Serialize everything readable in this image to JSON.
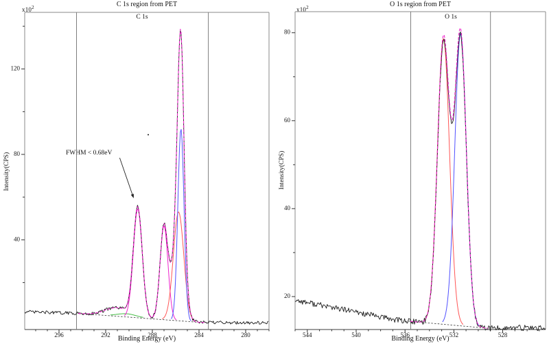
{
  "figure": {
    "background": "#ffffff"
  },
  "plots": [
    {
      "chart_data": {
        "type": "line",
        "title": "C 1s region from PET",
        "region_label": "C 1s",
        "xlabel": "Binding Energy (eV)",
        "ylabel": "Intensity(CPS)",
        "y_scale_base": "x10",
        "y_scale_exponent": "2",
        "x_axis_reversed": true,
        "xlim": [
          298.94,
          278.0
        ],
        "ylim": [
          -2,
          146.5
        ],
        "xticks_major": [
          296,
          292,
          288,
          284,
          280
        ],
        "xtick_minor_step": 1,
        "yticks_major": [
          40,
          80,
          120
        ],
        "yticks_minor": [
          20,
          60,
          100,
          140
        ],
        "region_boundaries_ev": [
          294.5,
          283.2
        ],
        "baseline_points": [
          [
            298.94,
            6.3
          ],
          [
            294.5,
            5.6
          ],
          [
            283.8,
            1.3
          ],
          [
            278.0,
            1.15
          ]
        ],
        "baseline_dash_range": [
          294.3,
          283.5
        ],
        "envelope": {
          "color": "#ee22cc",
          "dash_range": [
            294.4,
            283.4
          ]
        },
        "data_color": "#1a1a1a",
        "data_fit_gap_frac": 0,
        "noise_amplitude": 0.75,
        "noise_seed": 20,
        "components": [
          {
            "id": "shakeup-bump",
            "center": 291.3,
            "height": 3.2,
            "fwhm": 2.2,
            "color": null
          },
          {
            "id": "component-green",
            "center": 290.2,
            "height": 1.5,
            "fwhm": 2.0,
            "color": "#44bb44"
          },
          {
            "id": "peak-1",
            "center": 289.25,
            "height": 51,
            "fwhm": 0.9,
            "color": "#ee22cc"
          },
          {
            "id": "peak-2",
            "center": 287.0,
            "height": 44,
            "fwhm": 0.8,
            "color": "#ee22cc"
          },
          {
            "id": "peak-3-red",
            "center": 285.75,
            "height": 51,
            "fwhm": 1.05,
            "color": "#ff5555"
          },
          {
            "id": "peak-3-blue",
            "center": 285.55,
            "height": 90,
            "fwhm": 0.62,
            "color": "#5050ff"
          }
        ],
        "stray_dot": {
          "ev": 288.35,
          "value": 89.2
        },
        "annotation": {
          "text": "FWHM < 0.68eV",
          "arrow_from": [
            290.8,
            78.4
          ],
          "arrow_to": [
            289.6,
            59.5
          ]
        }
      }
    },
    {
      "chart_data": {
        "type": "line",
        "title": "O 1s region from PET",
        "region_label": "O 1s",
        "xlabel": "Binding Energy (eV)",
        "ylabel": "Intensity(CPS)",
        "y_scale_base": "x10",
        "y_scale_exponent": "2",
        "x_axis_reversed": true,
        "xlim": [
          545.0,
          524.49
        ],
        "ylim": [
          12.5,
          84.8
        ],
        "xticks_major": [
          544,
          540,
          536,
          532,
          528
        ],
        "xtick_minor_step": 1,
        "yticks_major": [
          20,
          40,
          60,
          80
        ],
        "yticks_minor": [
          30,
          50,
          70
        ],
        "region_boundaries_ev": [
          535.53,
          529.0
        ],
        "baseline_points": [
          [
            545.0,
            19.2
          ],
          [
            537.0,
            14.8
          ],
          [
            535.7,
            14.4
          ],
          [
            529.3,
            12.8
          ],
          [
            524.49,
            12.9
          ]
        ],
        "baseline_dash_range": [
          535.7,
          529.3
        ],
        "envelope": {
          "color": "#ee22cc",
          "dash_range": [
            535.6,
            529.2
          ]
        },
        "data_color": "#1a1a1a",
        "data_fit_gap_frac": 0.02,
        "noise_amplitude": 0.65,
        "noise_seed": 77,
        "components": [
          {
            "id": "peak-1-red",
            "center": 532.85,
            "height": 65,
            "fwhm": 1.17,
            "color": "#ff5555"
          },
          {
            "id": "peak-2-blue",
            "center": 531.45,
            "height": 66.5,
            "fwhm": 1.12,
            "color": "#5050ff"
          }
        ]
      }
    }
  ]
}
